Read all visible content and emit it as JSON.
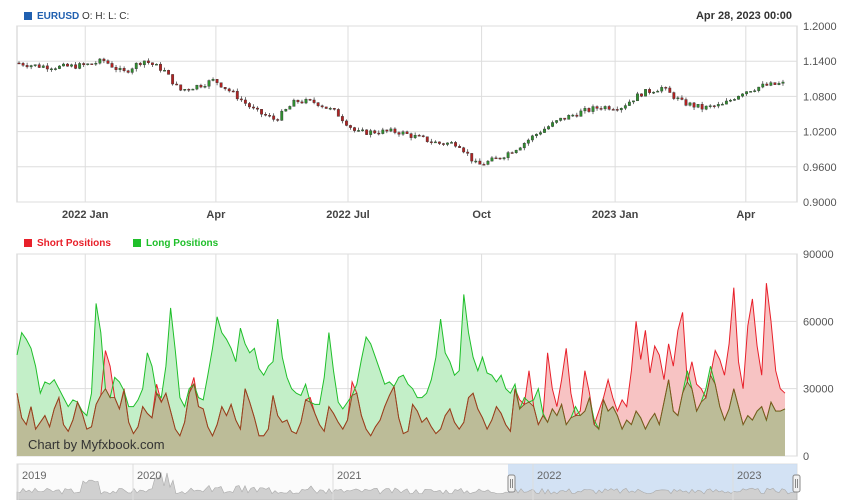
{
  "header": {
    "symbol": "EURUSD",
    "ohlc": "O: H: L: C:",
    "timestamp": "Apr 28, 2023 00:00"
  },
  "legend": {
    "short_label": "Short Positions",
    "long_label": "Long Positions"
  },
  "colors": {
    "candle_up": "#2f8f2f",
    "candle_down": "#b22222",
    "wick": "#333333",
    "short_fill": "#f7c3c3",
    "short_line": "#e8202a",
    "long_fill": "#c3efc8",
    "long_line": "#1fbf2a",
    "overlap_fill": "#bcbc98",
    "overlap_line": "#8a4a1e",
    "grid": "#dddddd",
    "nav_selection": "#c9dcf3",
    "symbol_sq": "#2060b0"
  },
  "watermark": "Chart by Myfxbook.com",
  "navigator": {
    "years": [
      "2019",
      "2020",
      "2021",
      "2022",
      "2023"
    ]
  },
  "chart_data": [
    {
      "type": "candlestick",
      "series_name": "EURUSD",
      "x_ticks": [
        "2022 Jan",
        "Apr",
        "2022 Jul",
        "Oct",
        "2023 Jan",
        "Apr"
      ],
      "y_ticks": [
        "1.2000",
        "1.1400",
        "1.0800",
        "1.0200",
        "0.9600",
        "0.9000"
      ],
      "ylim": [
        0.9,
        1.2
      ],
      "x_range": [
        "2021-11-15",
        "2023-04-28"
      ],
      "close_path": [
        [
          "2021-11-15",
          1.137
        ],
        [
          "2021-11-29",
          1.132
        ],
        [
          "2021-12-15",
          1.13
        ],
        [
          "2022-01-01",
          1.133
        ],
        [
          "2022-01-14",
          1.141
        ],
        [
          "2022-01-27",
          1.12
        ],
        [
          "2022-02-10",
          1.142
        ],
        [
          "2022-02-24",
          1.125
        ],
        [
          "2022-03-07",
          1.09
        ],
        [
          "2022-03-22",
          1.1
        ],
        [
          "2022-03-31",
          1.108
        ],
        [
          "2022-04-14",
          1.083
        ],
        [
          "2022-04-28",
          1.055
        ],
        [
          "2022-05-12",
          1.04
        ],
        [
          "2022-05-26",
          1.072
        ],
        [
          "2022-06-09",
          1.07
        ],
        [
          "2022-06-23",
          1.052
        ],
        [
          "2022-07-07",
          1.018
        ],
        [
          "2022-07-21",
          1.02
        ],
        [
          "2022-08-04",
          1.02
        ],
        [
          "2022-08-18",
          1.01
        ],
        [
          "2022-09-01",
          1.0
        ],
        [
          "2022-09-15",
          1.0
        ],
        [
          "2022-09-28",
          0.962
        ],
        [
          "2022-10-13",
          0.975
        ],
        [
          "2022-10-27",
          0.995
        ],
        [
          "2022-11-10",
          1.02
        ],
        [
          "2022-11-24",
          1.04
        ],
        [
          "2022-12-08",
          1.053
        ],
        [
          "2022-12-22",
          1.062
        ],
        [
          "2023-01-05",
          1.062
        ],
        [
          "2023-01-19",
          1.085
        ],
        [
          "2023-02-02",
          1.095
        ],
        [
          "2023-02-16",
          1.07
        ],
        [
          "2023-03-02",
          1.06
        ],
        [
          "2023-03-16",
          1.065
        ],
        [
          "2023-03-30",
          1.088
        ],
        [
          "2023-04-13",
          1.098
        ],
        [
          "2023-04-28",
          1.102
        ]
      ]
    },
    {
      "type": "area",
      "y_ticks": [
        "90000",
        "60000",
        "30000",
        "0"
      ],
      "ylim": [
        0,
        90000
      ],
      "series": [
        {
          "name": "Short Positions",
          "values": [
            28000,
            17000,
            14000,
            22000,
            12000,
            15000,
            18000,
            13000,
            21000,
            26000,
            14000,
            11000,
            16000,
            24000,
            19000,
            12000,
            13000,
            23000,
            27000,
            47000,
            40000,
            26000,
            21000,
            30000,
            15000,
            10000,
            13000,
            22000,
            19000,
            17000,
            32000,
            24000,
            28000,
            20000,
            12000,
            9000,
            15000,
            28000,
            35000,
            22000,
            21000,
            13000,
            9000,
            14000,
            22000,
            18000,
            23000,
            16000,
            12000,
            30000,
            24000,
            17000,
            9000,
            9000,
            12000,
            27000,
            18000,
            15000,
            16000,
            11000,
            10000,
            15000,
            25000,
            26000,
            19000,
            14000,
            11000,
            22000,
            19000,
            15000,
            12000,
            16000,
            33000,
            28000,
            18000,
            12000,
            9000,
            13000,
            16000,
            22000,
            27000,
            31000,
            17000,
            10000,
            11000,
            23000,
            20000,
            15000,
            17000,
            13000,
            10000,
            12000,
            18000,
            21000,
            15000,
            12000,
            15000,
            26000,
            28000,
            21000,
            17000,
            12000,
            16000,
            22000,
            19000,
            14000,
            11000,
            30000,
            25000,
            23000,
            38000,
            22000,
            14000,
            18000,
            46000,
            30000,
            22000,
            34000,
            48000,
            28000,
            18000,
            20000,
            38000,
            28000,
            14000,
            20000,
            26000,
            34000,
            26000,
            20000,
            25000,
            22000,
            38000,
            60000,
            43000,
            56000,
            37000,
            49000,
            45000,
            34000,
            50000,
            40000,
            56000,
            64000,
            33000,
            42000,
            32000,
            30000,
            26000,
            36000,
            47000,
            43000,
            36000,
            50000,
            75000,
            42000,
            30000,
            58000,
            70000,
            49000,
            36000,
            77000,
            60000,
            38000,
            30000,
            28000
          ],
          "fill": "#f7c3c3",
          "line": "#e8202a"
        },
        {
          "name": "Long Positions",
          "values": [
            45000,
            55000,
            52000,
            48000,
            40000,
            28000,
            33000,
            32000,
            34000,
            30000,
            26000,
            22000,
            25000,
            24000,
            20000,
            18000,
            28000,
            68000,
            55000,
            30000,
            26000,
            35000,
            33000,
            29000,
            22000,
            22000,
            25000,
            30000,
            46000,
            40000,
            28000,
            26000,
            40000,
            66000,
            47000,
            26000,
            22000,
            30000,
            32000,
            26000,
            25000,
            36000,
            48000,
            62000,
            55000,
            52000,
            48000,
            42000,
            57000,
            50000,
            46000,
            48000,
            39000,
            36000,
            40000,
            42000,
            61000,
            44000,
            35000,
            30000,
            28000,
            27000,
            32000,
            24000,
            23000,
            23000,
            35000,
            55000,
            38000,
            24000,
            21000,
            24000,
            27000,
            32000,
            43000,
            53000,
            50000,
            44000,
            38000,
            32000,
            33000,
            31000,
            35000,
            36000,
            32000,
            30000,
            26000,
            26000,
            28000,
            34000,
            44000,
            61000,
            46000,
            42000,
            36000,
            38000,
            72000,
            55000,
            44000,
            38000,
            44000,
            37000,
            36000,
            33000,
            36000,
            30000,
            28000,
            32000,
            21000,
            26000,
            24000,
            25000,
            30000,
            19000,
            15000,
            21000,
            18000,
            23000,
            14000,
            17000,
            22000,
            18000,
            20000,
            26000,
            16000,
            12000,
            25000,
            20000,
            22000,
            18000,
            12000,
            16000,
            14000,
            20000,
            17000,
            12000,
            16000,
            19000,
            14000,
            24000,
            34000,
            20000,
            18000,
            28000,
            38000,
            30000,
            20000,
            24000,
            30000,
            40000,
            32000,
            22000,
            16000,
            21000,
            30000,
            22000,
            14000,
            18000,
            16000,
            20000,
            22000,
            16000,
            24000,
            20000,
            20000,
            21000
          ],
          "fill": "#c3efc8",
          "line": "#1fbf2a"
        }
      ]
    }
  ]
}
